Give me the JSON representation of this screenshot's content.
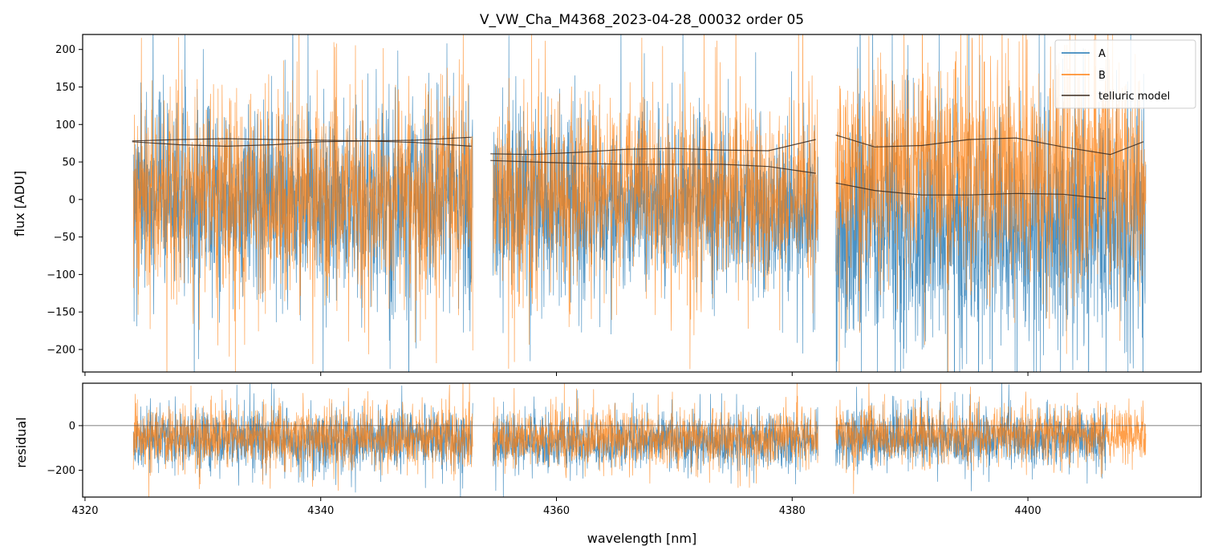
{
  "chart_data": [
    {
      "panel": "top",
      "type": "line",
      "title": "V_VW_Cha_M4368_2023-04-28_00032  order 05",
      "xlabel": "",
      "ylabel": "flux [ADU]",
      "xlim": [
        4319.8,
        4414.7
      ],
      "ylim": [
        -230,
        220
      ],
      "yticks": [
        200,
        150,
        100,
        50,
        0,
        -50,
        -100,
        -150,
        -200
      ],
      "xticks": [
        4320,
        4340,
        4360,
        4380,
        4400
      ],
      "legend": {
        "placement": "top-right",
        "entries": [
          "A",
          "B",
          "telluric model"
        ]
      },
      "colors": {
        "A": "#1f77b4",
        "B": "#ff7f0e",
        "telluric": "#3a2a1e",
        "frame": "#000000"
      },
      "segments": [
        {
          "x_range": [
            4324.1,
            4352.9
          ],
          "series": [
            {
              "name": "A",
              "center": 0,
              "spread": 62,
              "baseline_range": [
                -215,
                220
              ]
            },
            {
              "name": "B",
              "center": 5,
              "spread": 65,
              "baseline_range": [
                -215,
                220
              ]
            }
          ]
        },
        {
          "x_range": [
            4354.6,
            4382.2
          ],
          "series": [
            {
              "name": "A",
              "center": -8,
              "spread": 58
            },
            {
              "name": "B",
              "center": 8,
              "spread": 60
            }
          ]
        },
        {
          "x_range": [
            4383.7,
            4410.0
          ],
          "series": [
            {
              "name": "A",
              "center": -40,
              "spread": 75
            },
            {
              "name": "B",
              "center": 40,
              "spread": 70
            }
          ]
        }
      ],
      "telluric_model": [
        {
          "x": [
            4324.0,
            4328,
            4332,
            4336,
            4340,
            4344,
            4348,
            4352.8
          ],
          "y": [
            78,
            80,
            81,
            80,
            79,
            78,
            79,
            83
          ]
        },
        {
          "x": [
            4324.0,
            4328,
            4332,
            4336,
            4340,
            4344,
            4348,
            4352.8
          ],
          "y": [
            77,
            73,
            71,
            73,
            77,
            78,
            76,
            71
          ]
        },
        {
          "x": [
            4354.4,
            4358,
            4362,
            4366,
            4370,
            4374,
            4378,
            4382.0
          ],
          "y": [
            61,
            60,
            63,
            67,
            68,
            66,
            65,
            80
          ]
        },
        {
          "x": [
            4354.4,
            4358,
            4362,
            4366,
            4370,
            4374,
            4378,
            4382.0
          ],
          "y": [
            52,
            50,
            48,
            47,
            47,
            47,
            44,
            35
          ]
        },
        {
          "x": [
            4383.7,
            4387,
            4391,
            4395,
            4399,
            4403,
            4407,
            4409.8
          ],
          "y": [
            86,
            70,
            72,
            80,
            82,
            70,
            60,
            77
          ]
        },
        {
          "x": [
            4383.7,
            4387,
            4391,
            4395,
            4399,
            4403,
            4406.6
          ],
          "y": [
            22,
            12,
            6,
            6,
            8,
            7,
            1
          ]
        }
      ]
    },
    {
      "panel": "bottom",
      "type": "line",
      "title": "",
      "xlabel": "wavelength [nm]",
      "ylabel": "residual",
      "xlim": [
        4319.8,
        4414.7
      ],
      "ylim": [
        -320,
        190
      ],
      "yticks": [
        0,
        -200
      ],
      "xticks": [
        4320,
        4340,
        4360,
        4380,
        4400
      ],
      "reference_line_y": 0,
      "segments": [
        {
          "x_range": [
            4324.1,
            4352.9
          ],
          "series": [
            {
              "name": "A",
              "center": -60,
              "spread": 62
            },
            {
              "name": "B",
              "center": -50,
              "spread": 65
            }
          ]
        },
        {
          "x_range": [
            4354.6,
            4382.2
          ],
          "series": [
            {
              "name": "A",
              "center": -70,
              "spread": 58
            },
            {
              "name": "B",
              "center": -55,
              "spread": 60
            }
          ]
        },
        {
          "x_range": [
            4383.7,
            4410.0
          ],
          "series": [
            {
              "name": "A",
              "center": -60,
              "spread": 62,
              "x_end": 4406.6
            },
            {
              "name": "B",
              "center": -40,
              "spread": 60
            }
          ]
        }
      ]
    }
  ]
}
